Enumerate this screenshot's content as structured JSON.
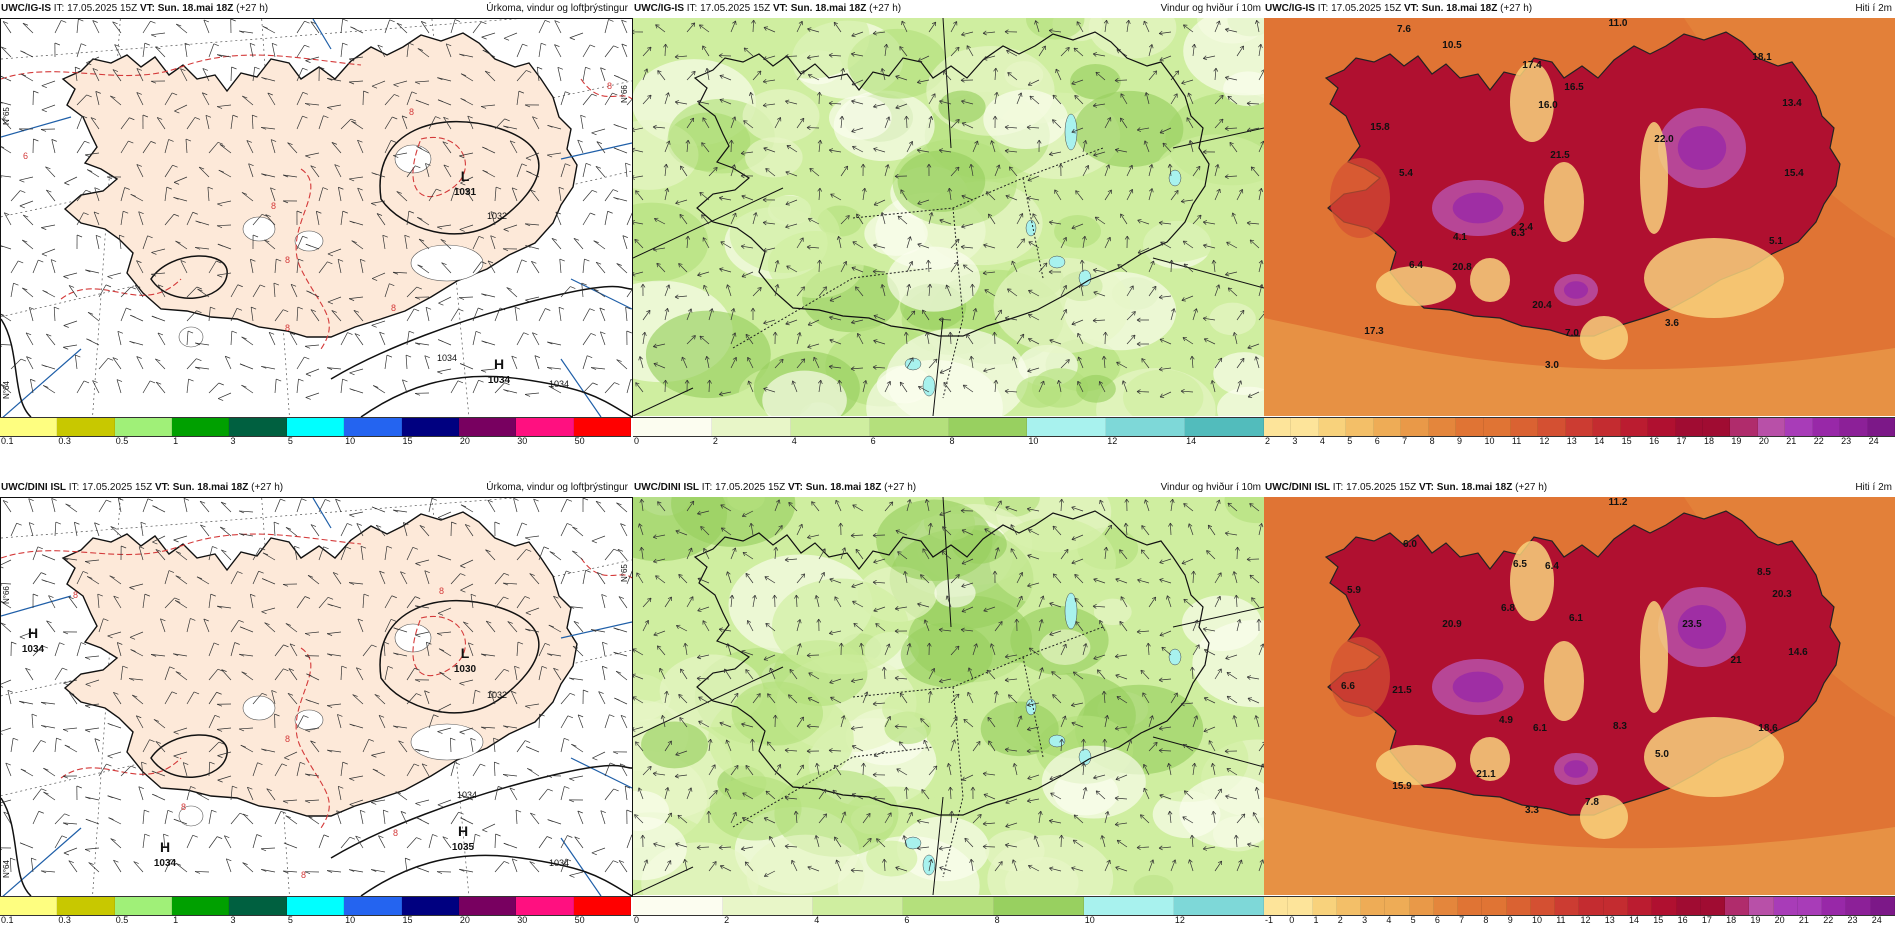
{
  "colors": {
    "precip": [
      "#fefe80",
      "#c8c800",
      "#a0f078",
      "#00a000",
      "#006040",
      "#00ffff",
      "#2464f0",
      "#000080",
      "#780060",
      "#ff1080",
      "#ff0000"
    ],
    "wind": [
      "#fcfdf0",
      "#e8f6c8",
      "#cfeea0",
      "#b4e07c",
      "#98d060",
      "#a8f2ee",
      "#7ed8d8",
      "#52bcbc"
    ],
    "temp": [
      "#fde49a",
      "#f8d27c",
      "#f3bf68",
      "#eeac56",
      "#e99948",
      "#e4863c",
      "#e07434",
      "#da6232",
      "#d45032",
      "#cc3c32",
      "#c42c30",
      "#bb1c30",
      "#b01030",
      "#a00c32",
      "#b02c6c",
      "#b850a8",
      "#a83cb8",
      "#9828a8",
      "#8c2098",
      "#7c1888"
    ],
    "sea_pressure": "#ffffff",
    "land_pressure": "#fde9d9"
  },
  "panels": [
    {
      "model": "UWC/IG-IS",
      "it_label": "IT:",
      "it": "17.05.2025 15Z",
      "vt_label": "VT:",
      "vt": "Sun. 18.mai 18Z",
      "lead": "(+27 h)",
      "title": "Úrkoma, vindur og loftþrýstingur",
      "ticks": [
        "0.1",
        "0.3",
        "0.5",
        "1",
        "3",
        "5",
        "10",
        "15",
        "20",
        "30",
        "50"
      ],
      "isobars": [
        {
          "letter": "L",
          "value": "1031"
        },
        {
          "letter": "H",
          "value": "1034"
        }
      ],
      "contour_labels": [
        "1032",
        "1034",
        "1034",
        "8",
        "8",
        "8",
        "8",
        "8",
        "6",
        "8"
      ],
      "side_labels": [
        "N°65",
        "N°66",
        "N°64"
      ]
    },
    {
      "model": "UWC/IG-IS",
      "it_label": "IT:",
      "it": "17.05.2025 15Z",
      "vt_label": "VT:",
      "vt": "Sun. 18.mai 18Z",
      "lead": "(+27 h)",
      "title": "Vindur og hviður í 10m",
      "ticks": [
        "0",
        "2",
        "4",
        "6",
        "8",
        "10",
        "12",
        "14"
      ]
    },
    {
      "model": "UWC/IG-IS",
      "it_label": "IT:",
      "it": "17.05.2025 15Z",
      "vt_label": "VT:",
      "vt": "Sun. 18.mai 18Z",
      "lead": "(+27 h)",
      "title": "Hiti í 2m",
      "ticks": [
        "2",
        "3",
        "4",
        "5",
        "6",
        "7",
        "8",
        "9",
        "10",
        "11",
        "12",
        "13",
        "14",
        "15",
        "16",
        "17",
        "18",
        "19",
        "20",
        "21",
        "22",
        "23",
        "24"
      ],
      "values": [
        "11.0",
        "7.6",
        "10.5",
        "18.1",
        "17.4",
        "16.5",
        "16.0",
        "15.8",
        "13.4",
        "5.4",
        "21.5",
        "22.0",
        "15.4",
        "4.1",
        "6.3",
        "5.1",
        "2.4",
        "20.8",
        "20.4",
        "3.6",
        "7.0",
        "17.3",
        "3.0",
        "6.4"
      ]
    },
    {
      "model": "UWC/DINI ISL",
      "it_label": "IT:",
      "it": "17.05.2025 15Z",
      "vt_label": "VT:",
      "vt": "Sun. 18.mai 18Z",
      "lead": "(+27 h)",
      "title": "Úrkoma, vindur og loftþrýstingur",
      "ticks": [
        "0.1",
        "0.3",
        "0.5",
        "1",
        "3",
        "5",
        "10",
        "15",
        "20",
        "30",
        "50"
      ],
      "isobars": [
        {
          "letter": "H",
          "value": "1034"
        },
        {
          "letter": "L",
          "value": "1030"
        },
        {
          "letter": "H",
          "value": "1035"
        },
        {
          "letter": "H",
          "value": "1034"
        }
      ],
      "contour_labels": [
        "1032",
        "1034",
        "1034",
        "8",
        "8",
        "8",
        "8",
        "8",
        "8"
      ],
      "side_labels": [
        "N°66",
        "N°65",
        "N°64"
      ]
    },
    {
      "model": "UWC/DINI ISL",
      "it_label": "IT:",
      "it": "17.05.2025 15Z",
      "vt_label": "VT:",
      "vt": "Sun. 18.mai 18Z",
      "lead": "(+27 h)",
      "title": "Vindur og hviður í 10m",
      "ticks": [
        "0",
        "2",
        "4",
        "6",
        "8",
        "10",
        "12"
      ]
    },
    {
      "model": "UWC/DINI ISL",
      "it_label": "IT:",
      "it": "17.05.2025 15Z",
      "vt_label": "VT:",
      "vt": "Sun. 18.mai 18Z",
      "lead": "(+27 h)",
      "title": "Hiti í 2m",
      "ticks": [
        "-1",
        "0",
        "1",
        "2",
        "3",
        "4",
        "5",
        "6",
        "7",
        "8",
        "9",
        "10",
        "11",
        "12",
        "13",
        "14",
        "15",
        "16",
        "17",
        "18",
        "19",
        "20",
        "21",
        "22",
        "23",
        "24"
      ],
      "values": [
        "11.2",
        "6.0",
        "5.9",
        "6.5",
        "6.4",
        "8.5",
        "20.3",
        "6.8",
        "6.1",
        "20.9",
        "23.5",
        "14.6",
        "21",
        "6.6",
        "21.5",
        "4.9",
        "18.6",
        "21.1",
        "6.1",
        "8.3",
        "5.0",
        "15.9",
        "7.8",
        "3.3"
      ]
    }
  ]
}
